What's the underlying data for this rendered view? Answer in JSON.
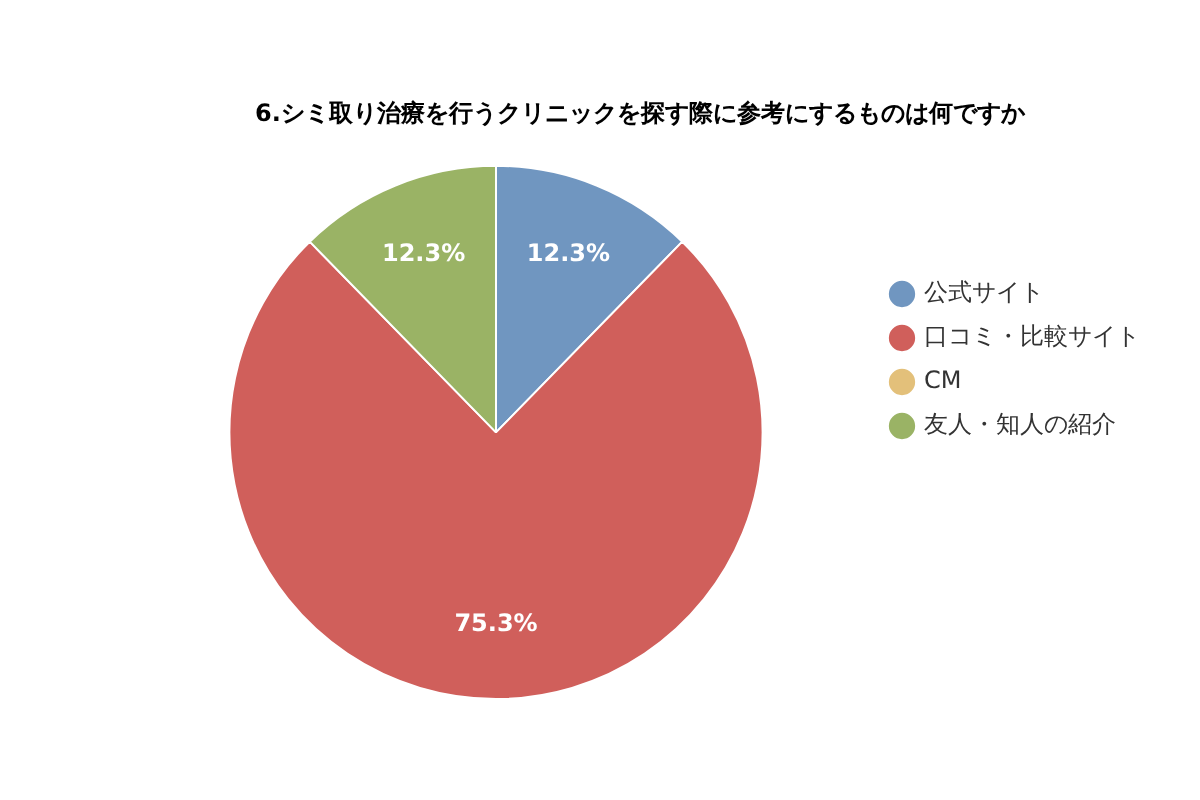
{
  "chart_data": {
    "type": "pie",
    "title": "6.シミ取り治療を行うクリニックを探す際に参考にするものは何ですか",
    "categories": [
      "公式サイト",
      "口コミ・比較サイト",
      "CM",
      "友人・知人の紹介"
    ],
    "values": [
      12.3,
      75.3,
      0,
      12.3
    ],
    "colors": [
      "#7096c0",
      "#d05f5b",
      "#e3c07a",
      "#9ab365"
    ],
    "value_labels": [
      "12.3%",
      "75.3%",
      null,
      "12.3%"
    ],
    "legend": "right"
  }
}
